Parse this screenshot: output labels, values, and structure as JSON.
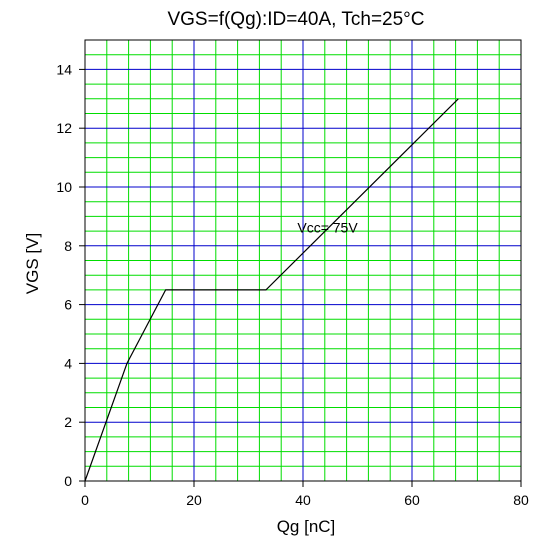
{
  "chart_data": {
    "type": "line",
    "title": "VGS=f(Qg):ID=40A, Tch=25°C",
    "xlabel": "Qg [nC]",
    "ylabel": "VGS [V]",
    "xlim": [
      0,
      80
    ],
    "ylim": [
      0,
      15
    ],
    "xticks": [
      0,
      20,
      40,
      60,
      80
    ],
    "yticks": [
      0,
      2,
      4,
      6,
      8,
      10,
      12,
      14
    ],
    "grid": true,
    "minor_grid_color": "#00dd00",
    "major_grid_color": "#0000cc",
    "line_color": "#000000",
    "series": [
      {
        "x": [
          0,
          7.7,
          14.8,
          33.2,
          68.5
        ],
        "y": [
          0,
          4.0,
          6.5,
          6.5,
          13.0
        ]
      }
    ],
    "annotations": [
      {
        "text": "Vcc= 75V",
        "x": 44.5,
        "y": 8.45
      }
    ]
  }
}
